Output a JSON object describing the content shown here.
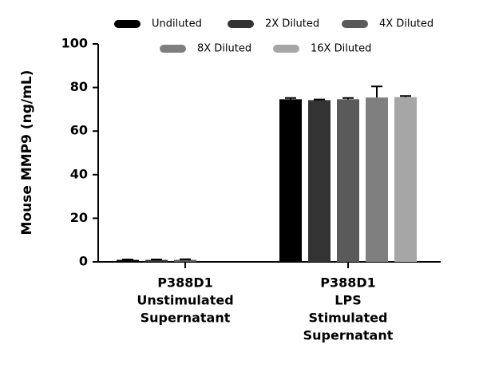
{
  "chart_data": {
    "type": "bar",
    "ylabel": "Mouse MMP9 (ng/mL)",
    "categories": [
      [
        "P388D1",
        "Unstimulated",
        "Supernatant"
      ],
      [
        "P388D1",
        "LPS",
        "Stimulated",
        "Supernatant"
      ]
    ],
    "series": [
      {
        "name": "Undiluted",
        "color": "#000000",
        "values": [
          0.9,
          74.6
        ],
        "errors": [
          0.2,
          0.6
        ]
      },
      {
        "name": "2X Diluted",
        "color": "#333333",
        "values": [
          0.9,
          74.2
        ],
        "errors": [
          0.2,
          0.3
        ]
      },
      {
        "name": "4X Diluted",
        "color": "#5a5a5a",
        "values": [
          0.9,
          74.6
        ],
        "errors": [
          0.3,
          0.6
        ]
      },
      {
        "name": "8X Diluted",
        "color": "#7f7f7f",
        "values": [
          null,
          75.4
        ],
        "errors": [
          null,
          5.1
        ]
      },
      {
        "name": "16X Diluted",
        "color": "#a6a6a6",
        "values": [
          null,
          75.6
        ],
        "errors": [
          null,
          0.5
        ]
      }
    ],
    "ylim": [
      0,
      100
    ],
    "yticks": [
      0,
      20,
      40,
      60,
      80,
      100
    ]
  }
}
